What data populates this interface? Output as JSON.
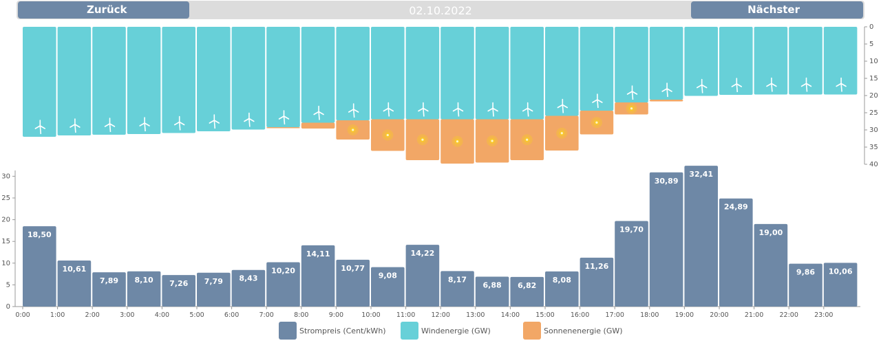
{
  "header": {
    "prev_label": "Zurück",
    "next_label": "Nächster",
    "date": "02.10.2022"
  },
  "colors": {
    "price": "#6e88a6",
    "wind": "#67d0d8",
    "solar": "#f2a766",
    "sun_core": "#f7c531"
  },
  "chart_data": [
    {
      "type": "bar",
      "stacked": true,
      "orientation": "hanging",
      "categories": [
        "0:00",
        "1:00",
        "2:00",
        "3:00",
        "4:00",
        "5:00",
        "6:00",
        "7:00",
        "8:00",
        "9:00",
        "10:00",
        "11:00",
        "12:00",
        "13:00",
        "14:00",
        "15:00",
        "16:00",
        "17:00",
        "18:00",
        "19:00",
        "20:00",
        "21:00",
        "22:00",
        "23:00"
      ],
      "series": [
        {
          "name": "Windenergie (GW)",
          "values": [
            32.0,
            31.6,
            31.4,
            31.2,
            30.9,
            30.4,
            29.9,
            29.2,
            27.9,
            27.2,
            26.9,
            26.9,
            26.9,
            26.9,
            26.9,
            25.9,
            24.4,
            22.0,
            21.2,
            20.1,
            19.8,
            19.7,
            19.7,
            19.7
          ]
        },
        {
          "name": "Sonnenenergie (GW)",
          "values": [
            0,
            0,
            0,
            0,
            0,
            0,
            0,
            0.3,
            1.7,
            5.6,
            9.2,
            11.9,
            12.9,
            12.6,
            11.9,
            10.1,
            6.9,
            3.5,
            0.5,
            0,
            0,
            0,
            0,
            0
          ]
        }
      ],
      "ylim": [
        0,
        40
      ],
      "yticks": [
        0,
        5,
        10,
        15,
        20,
        25,
        30,
        35,
        40
      ]
    },
    {
      "type": "bar",
      "categories": [
        "0:00",
        "1:00",
        "2:00",
        "3:00",
        "4:00",
        "5:00",
        "6:00",
        "7:00",
        "8:00",
        "9:00",
        "10:00",
        "11:00",
        "12:00",
        "13:00",
        "14:00",
        "15:00",
        "16:00",
        "17:00",
        "18:00",
        "19:00",
        "20:00",
        "21:00",
        "22:00",
        "23:00"
      ],
      "series": [
        {
          "name": "Strompreis (Cent/kWh)",
          "values": [
            18.5,
            10.61,
            7.89,
            8.1,
            7.26,
            7.79,
            8.43,
            10.2,
            14.11,
            10.77,
            9.08,
            14.22,
            8.17,
            6.88,
            6.82,
            8.08,
            11.26,
            19.7,
            30.89,
            32.41,
            24.89,
            19.0,
            9.86,
            10.06
          ]
        }
      ],
      "data_labels": [
        "18,50",
        "10,61",
        "7,89",
        "8,10",
        "7,26",
        "7,79",
        "8,43",
        "10,20",
        "14,11",
        "10,77",
        "9,08",
        "14,22",
        "8,17",
        "6,88",
        "6,82",
        "8,08",
        "11,26",
        "19,70",
        "30,89",
        "32,41",
        "24,89",
        "19,00",
        "9,86",
        "10,06"
      ],
      "ylim": [
        0,
        30
      ],
      "yticks": [
        0,
        5,
        10,
        15,
        20,
        25,
        30
      ],
      "xticks": [
        "0:00",
        "1:00",
        "2:00",
        "3:00",
        "4:00",
        "5:00",
        "6:00",
        "7:00",
        "8:00",
        "9:00",
        "10:00",
        "11:00",
        "12:00",
        "13:00",
        "14:00",
        "15:00",
        "16:00",
        "17:00",
        "18:00",
        "19:00",
        "20:00",
        "21:00",
        "22:00",
        "23:00"
      ]
    }
  ],
  "legend": [
    {
      "label": "Strompreis (Cent/kWh)",
      "color": "#6e88a6"
    },
    {
      "label": "Windenergie (GW)",
      "color": "#67d0d8"
    },
    {
      "label": "Sonnenenergie (GW)",
      "color": "#f2a766"
    }
  ]
}
